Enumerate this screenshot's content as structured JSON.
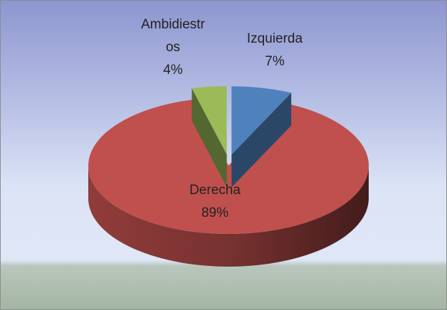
{
  "chart_data": {
    "type": "pie",
    "categories": [
      "Izquierda",
      "Derecha",
      "Ambidiestros"
    ],
    "values": [
      7,
      89,
      4
    ],
    "value_labels": [
      "7%",
      "89%",
      "4%"
    ],
    "colors": [
      "#4f81bd",
      "#c0504d",
      "#9bbb59"
    ]
  }
}
